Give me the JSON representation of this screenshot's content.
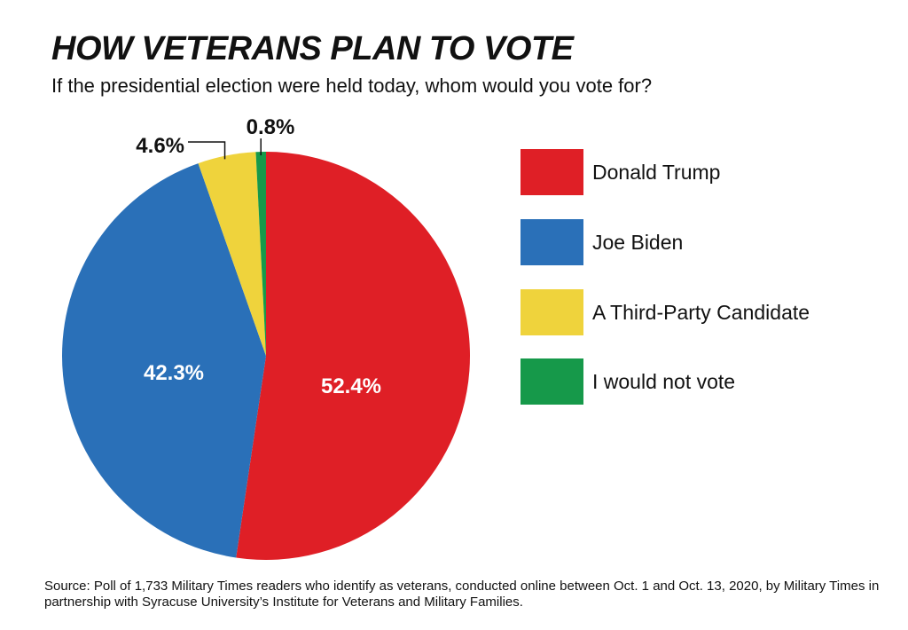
{
  "chart_data": {
    "type": "pie",
    "title": "HOW VETERANS PLAN TO VOTE",
    "subtitle": "If the presidential election were held today, whom would you vote for?",
    "categories": [
      "Donald Trump",
      "Joe Biden",
      "A Third-Party Candidate",
      "I would not vote"
    ],
    "values": [
      52.4,
      42.3,
      4.6,
      0.8
    ],
    "data_labels": [
      "52.4%",
      "42.3%",
      "4.6%",
      "0.8%"
    ],
    "colors": [
      "#df1f26",
      "#2a70b8",
      "#efd33c",
      "#16994a"
    ],
    "start_angle": "12 o'clock",
    "direction": "clockwise",
    "legend_placement": "right",
    "source": "Source: Poll of 1,733 Military Times readers who identify as veterans, conducted online between Oct. 1 and Oct. 13, 2020, by Military Times in partnership with Syracuse University’s Institute for Veterans and Military Families."
  }
}
